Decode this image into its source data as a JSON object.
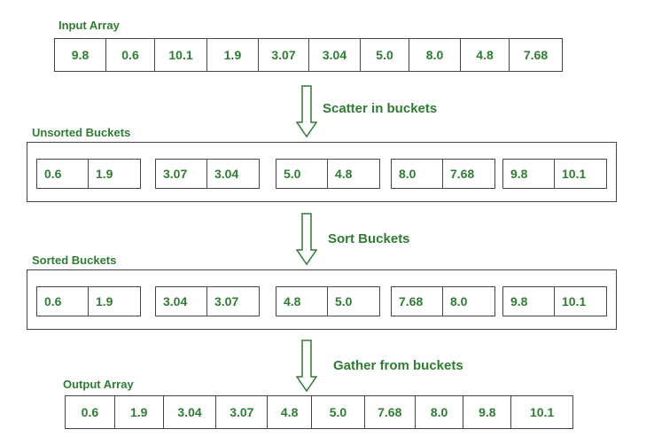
{
  "input": {
    "label": "Input Array",
    "values": [
      "9.8",
      "0.6",
      "10.1",
      "1.9",
      "3.07",
      "3.04",
      "5.0",
      "8.0",
      "4.8",
      "7.68"
    ]
  },
  "steps": {
    "scatter": "Scatter in buckets",
    "sort": "Sort Buckets",
    "gather": "Gather from buckets"
  },
  "unsorted": {
    "label": "Unsorted Buckets",
    "buckets": [
      [
        "0.6",
        "1.9"
      ],
      [
        "3.07",
        "3.04"
      ],
      [
        "5.0",
        "4.8"
      ],
      [
        "8.0",
        "7.68"
      ],
      [
        "9.8",
        "10.1"
      ]
    ]
  },
  "sorted": {
    "label": "Sorted Buckets",
    "buckets": [
      [
        "0.6",
        "1.9"
      ],
      [
        "3.04",
        "3.07"
      ],
      [
        "4.8",
        "5.0"
      ],
      [
        "7.68",
        "8.0"
      ],
      [
        "9.8",
        "10.1"
      ]
    ]
  },
  "output": {
    "label": "Output Array",
    "values": [
      "0.6",
      "1.9",
      "3.04",
      "3.07",
      "4.8",
      "5.0",
      "7.68",
      "8.0",
      "9.8",
      "10.1"
    ]
  },
  "colors": {
    "text": "#2e7d32",
    "border": "#444444"
  }
}
